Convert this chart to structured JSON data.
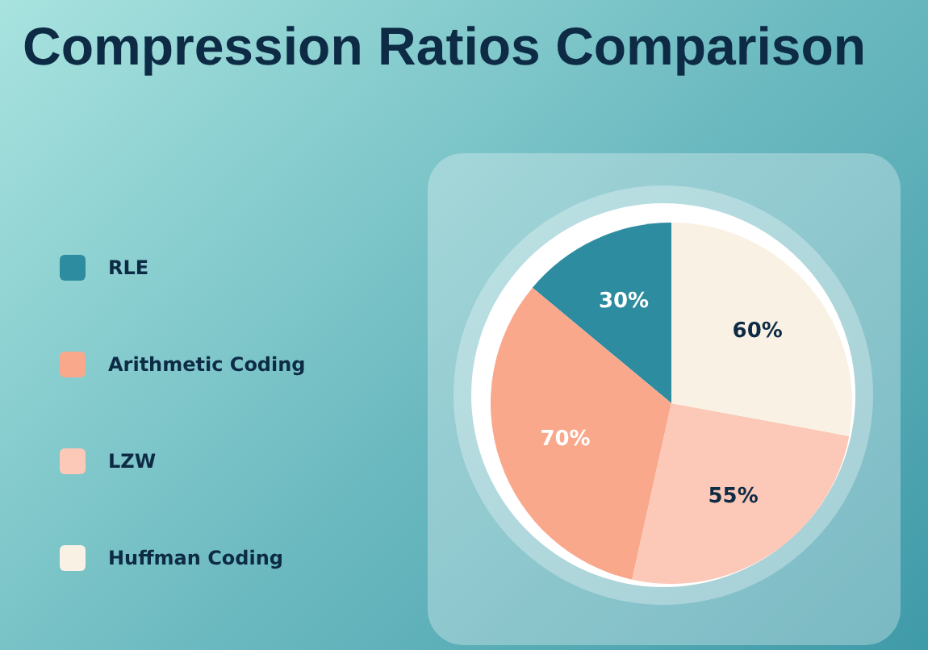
{
  "chart_data": {
    "type": "pie",
    "title": "Compression Ratios Comparison",
    "categories": [
      "RLE",
      "Arithmetic Coding",
      "LZW",
      "Huffman Coding"
    ],
    "values": [
      30,
      70,
      55,
      60
    ],
    "colors": [
      "#2e8ca0",
      "#f9a88c",
      "#fcc8b8",
      "#f9f1e3"
    ],
    "value_labels": [
      "30%",
      "70%",
      "55%",
      "60%"
    ],
    "legend": "left"
  }
}
